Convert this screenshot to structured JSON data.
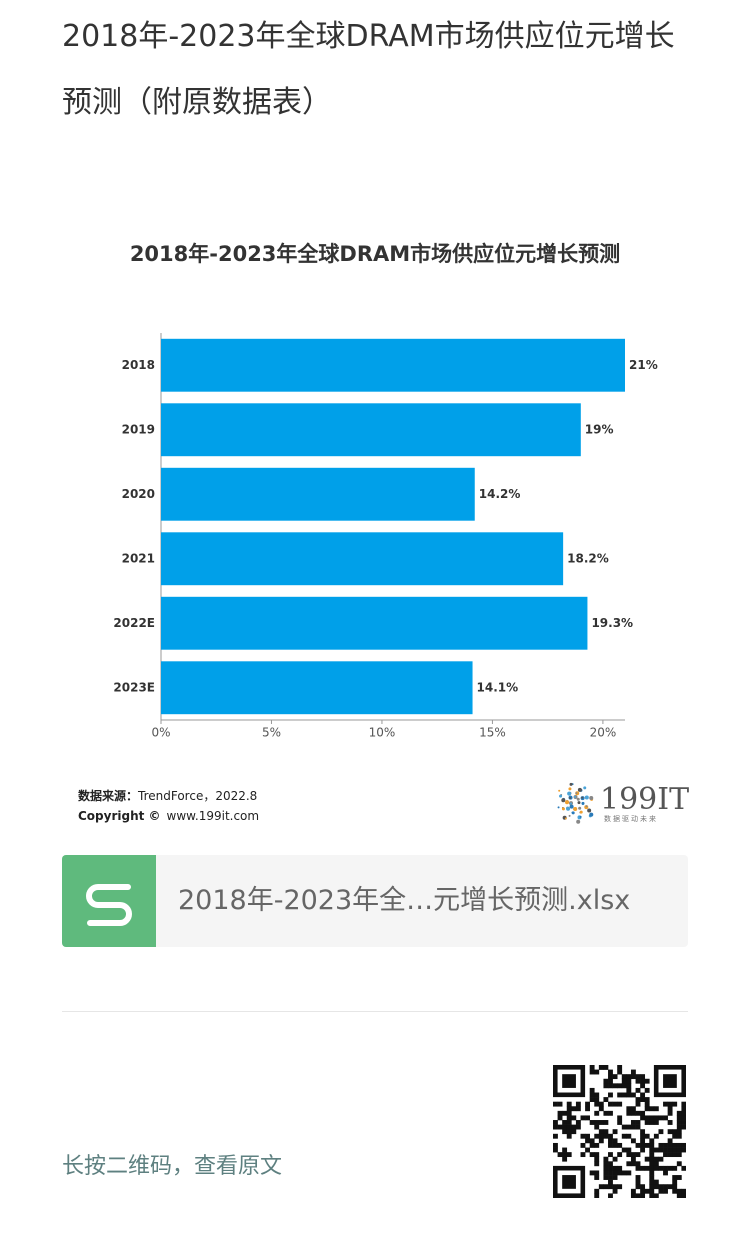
{
  "header": {
    "title": "2018年-2023年全球DRAM市场供应位元增长预测（附原数据表）"
  },
  "chart_data": {
    "type": "hbar",
    "title": "2018年-2023年全球DRAM市场供应位元增长预测",
    "categories": [
      "2018",
      "2019",
      "2020",
      "2021",
      "2022E",
      "2023E"
    ],
    "values": [
      21,
      19,
      14.2,
      18.2,
      19.3,
      14.1
    ],
    "value_labels": [
      "21%",
      "19%",
      "14.2%",
      "18.2%",
      "19.3%",
      "14.1%"
    ],
    "color": "#00a0e9",
    "xlim": [
      0,
      21
    ],
    "xticks": [
      {
        "value": 0,
        "label": "0%"
      },
      {
        "value": 5,
        "label": "5%"
      },
      {
        "value": 10,
        "label": "10%"
      },
      {
        "value": 15,
        "label": "15%"
      },
      {
        "value": 20,
        "label": "20%"
      }
    ],
    "grid": false
  },
  "chart_footer": {
    "source_label": "数据来源：",
    "source_value": "TrendForce，2022.8",
    "copyright_label": "Copyright ©",
    "copyright_value": "www.199it.com",
    "logo": "199IT",
    "logo_slogan": "数据驱动未来"
  },
  "attachment": {
    "file_name": "2018年-2023年全…元增长预测.xlsx"
  },
  "footer": {
    "hint": "长按二维码，查看原文"
  }
}
